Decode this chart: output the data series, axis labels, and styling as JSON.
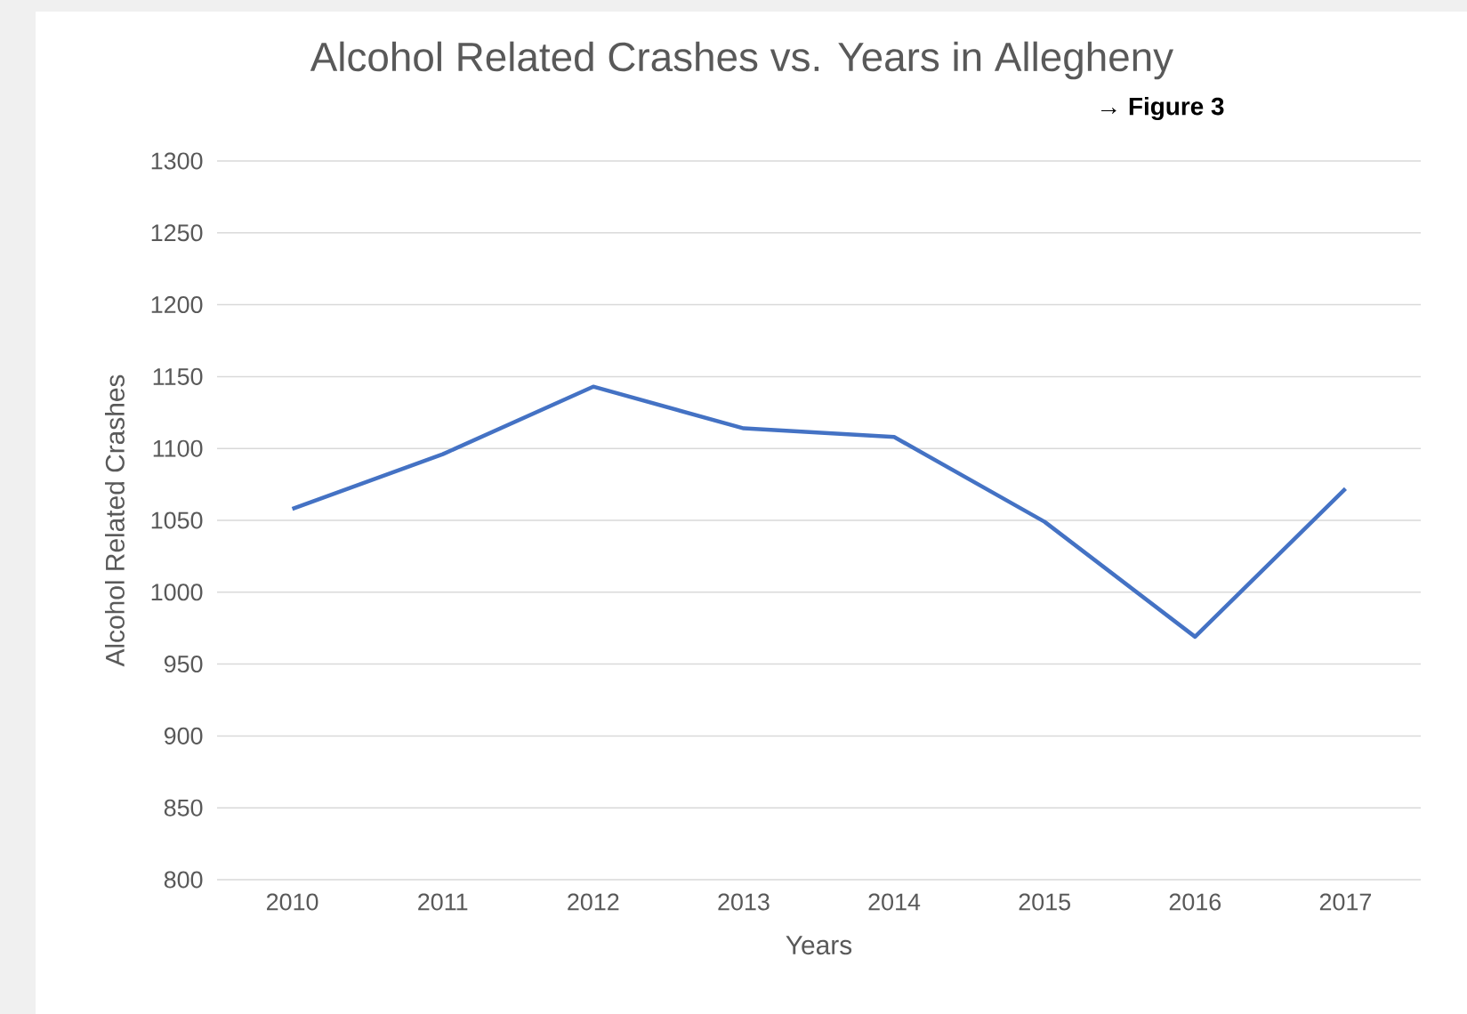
{
  "chart_data": {
    "type": "line",
    "title": "Alcohol Related Crashes vs. Years in Allegheny",
    "xlabel": "Years",
    "ylabel": "Alcohol Related Crashes",
    "annotations": [
      "→ Figure 3"
    ],
    "categories": [
      "2010",
      "2011",
      "2012",
      "2013",
      "2014",
      "2015",
      "2016",
      "2017"
    ],
    "values": [
      1058,
      1096,
      1143,
      1114,
      1108,
      1049,
      969,
      1072
    ],
    "color": "#4472c4",
    "ylim": [
      800,
      1300
    ],
    "yticks": [
      800,
      850,
      900,
      950,
      1000,
      1050,
      1100,
      1150,
      1200,
      1250,
      1300
    ],
    "grid": "y",
    "marker": "none",
    "line_style": "solid"
  }
}
